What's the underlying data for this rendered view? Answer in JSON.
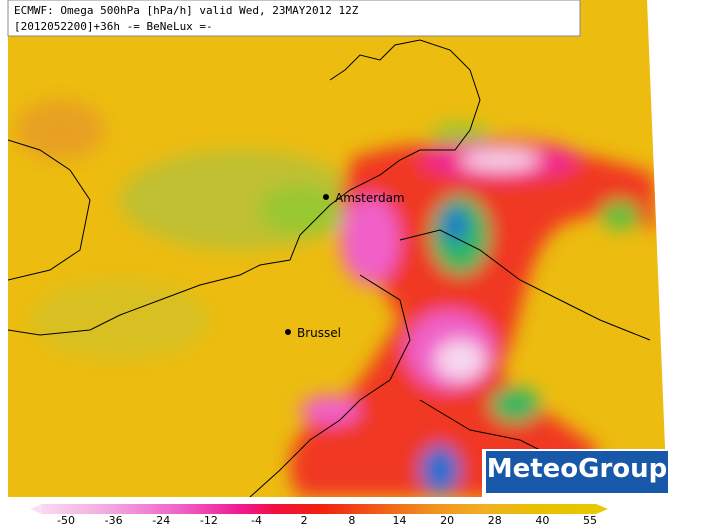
{
  "header": {
    "line1": "ECMWF: Omega 500hPa [hPa/h] valid Wed, 23MAY2012 12Z",
    "line2": "[2012052200]+36h -= BeNeLux =-"
  },
  "cities": [
    {
      "name": "Amsterdam"
    },
    {
      "name": "Brussel"
    }
  ],
  "colorbar": {
    "labels": [
      -50,
      -36,
      -24,
      -12,
      -4,
      2,
      8,
      14,
      20,
      28,
      40,
      55
    ]
  },
  "logo": {
    "text": "MeteoGroup"
  }
}
